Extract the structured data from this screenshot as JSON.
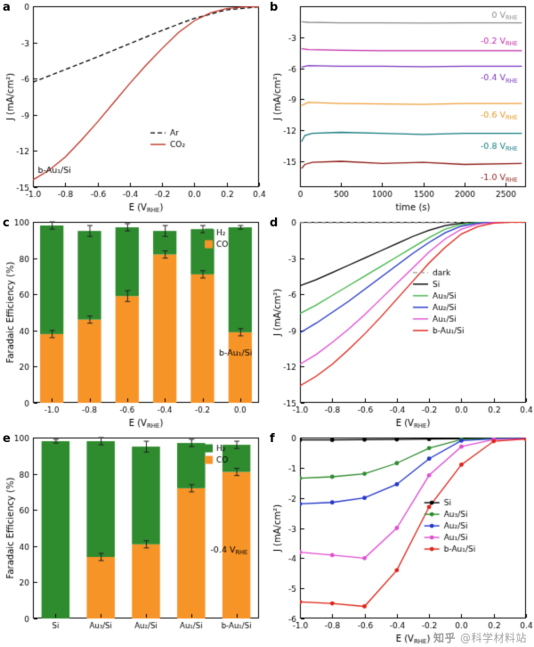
{
  "watermark": {
    "logo": "知乎",
    "handle": "@科学材料站"
  },
  "chart_data": [
    {
      "panel_label": "a",
      "id": "a",
      "type": "line",
      "xlabel": "E (V~RHE~)",
      "ylabel": "J (mA/cm²)",
      "xlim": [
        -1.0,
        0.4
      ],
      "ylim": [
        -15,
        0
      ],
      "xticks": [
        -1.0,
        -0.8,
        -0.6,
        -0.4,
        -0.2,
        0.0,
        0.2,
        0.4
      ],
      "xtick_labels": [
        "-1.0",
        "-0.8",
        "-0.6",
        "-0.4",
        "-0.2",
        "0.0",
        "0.2",
        "0.4"
      ],
      "yticks": [
        0,
        -3,
        -6,
        -9,
        -12,
        -15
      ],
      "legend": {
        "fx": 0.52,
        "fy": 0.7
      },
      "annotations": [
        {
          "text": "b-Au₁/Si",
          "x": -0.97,
          "y": -13.6,
          "color": "#000000",
          "align": "left"
        }
      ],
      "series": [
        {
          "name": "Ar",
          "color": "#000000",
          "dash": [
            5,
            3
          ],
          "x": [
            -1.0,
            -0.8,
            -0.6,
            -0.4,
            -0.2,
            0.0,
            0.2,
            0.4
          ],
          "y": [
            -6.3,
            -5.25,
            -4.2,
            -3.1,
            -2.0,
            -1.0,
            -0.3,
            -0.05
          ]
        },
        {
          "name": "CO₂",
          "color": "#c0392b",
          "x": [
            -1.0,
            -0.9,
            -0.8,
            -0.7,
            -0.6,
            -0.5,
            -0.4,
            -0.3,
            -0.2,
            -0.1,
            0.0,
            0.1,
            0.2,
            0.3,
            0.4
          ],
          "y": [
            -14.4,
            -13.6,
            -12.5,
            -11.1,
            -9.6,
            -8.0,
            -6.4,
            -4.9,
            -3.5,
            -2.2,
            -1.2,
            -0.55,
            -0.2,
            -0.07,
            -0.04
          ]
        }
      ]
    },
    {
      "panel_label": "b",
      "id": "b",
      "type": "line",
      "xlabel": "time (s)",
      "ylabel": "J (mA/cm²)",
      "xlim": [
        0,
        2750
      ],
      "ylim": [
        -17.5,
        0
      ],
      "xticks": [
        0,
        500,
        1000,
        1500,
        2000,
        2500
      ],
      "xtick_labels": [
        "0",
        "500",
        "1000",
        "1500",
        "2000",
        "2500"
      ],
      "yticks": [
        -3,
        -6,
        -9,
        -12,
        -15
      ],
      "annotations": [
        {
          "text": "0 V~RHE~",
          "x": 2650,
          "y": -0.8,
          "color": "#8e8e8e",
          "align": "right"
        },
        {
          "text": "-0.2 V~RHE~",
          "x": 2650,
          "y": -3.3,
          "color": "#c22ba8",
          "align": "right"
        },
        {
          "text": "-0.4 V~RHE~",
          "x": 2650,
          "y": -6.9,
          "color": "#7d35c1",
          "align": "right"
        },
        {
          "text": "-0.6 V~RHE~",
          "x": 2650,
          "y": -10.5,
          "color": "#e8992a",
          "align": "right"
        },
        {
          "text": "-0.8 V~RHE~",
          "x": 2650,
          "y": -13.5,
          "color": "#177d80",
          "align": "right"
        },
        {
          "text": "-1.0 V~RHE~",
          "x": 2650,
          "y": -16.5,
          "color": "#8e1d15",
          "align": "right"
        }
      ],
      "series": [
        {
          "name": "0 V",
          "color": "#8e8e8e",
          "x": [
            20,
            100,
            500,
            1000,
            1500,
            2000,
            2700
          ],
          "y": [
            -1.5,
            -1.55,
            -1.6,
            -1.6,
            -1.62,
            -1.6,
            -1.6
          ]
        },
        {
          "name": "-0.2 V",
          "color": "#c22ba8",
          "x": [
            20,
            100,
            500,
            1000,
            1500,
            2000,
            2700
          ],
          "y": [
            -4.1,
            -4.2,
            -4.25,
            -4.3,
            -4.3,
            -4.3,
            -4.3
          ]
        },
        {
          "name": "-0.4 V",
          "color": "#7d35c1",
          "x": [
            20,
            100,
            500,
            1000,
            1500,
            2000,
            2700
          ],
          "y": [
            -5.9,
            -5.75,
            -5.8,
            -5.8,
            -5.85,
            -5.8,
            -5.8
          ]
        },
        {
          "name": "-0.6 V",
          "color": "#f0a13c",
          "x": [
            20,
            100,
            500,
            1000,
            1500,
            2000,
            2700
          ],
          "y": [
            -9.6,
            -9.3,
            -9.4,
            -9.45,
            -9.5,
            -9.4,
            -9.4
          ]
        },
        {
          "name": "-0.8 V",
          "color": "#177d80",
          "x": [
            20,
            60,
            150,
            500,
            1000,
            1500,
            2000,
            2700
          ],
          "y": [
            -13.1,
            -12.5,
            -12.3,
            -12.2,
            -12.3,
            -12.4,
            -12.3,
            -12.3
          ]
        },
        {
          "name": "-1.0 V",
          "color": "#8e1d15",
          "x": [
            20,
            60,
            150,
            500,
            1000,
            1500,
            2000,
            2700
          ],
          "y": [
            -15.7,
            -15.3,
            -15.1,
            -15.0,
            -15.2,
            -15.1,
            -15.3,
            -15.2
          ]
        }
      ]
    },
    {
      "panel_label": "c",
      "id": "c",
      "type": "stacked_bar",
      "xlabel": "E (V~RHE~)",
      "ylabel": "Faradaic Efficiency (%)",
      "ylim": [
        0,
        100
      ],
      "yticks": [
        0,
        20,
        40,
        60,
        80,
        100
      ],
      "categories": [
        "-1.0",
        "-0.8",
        "-0.6",
        "-0.4",
        "-0.2",
        "0.0"
      ],
      "series": [
        {
          "name": "CO",
          "color": "#f79428",
          "values": [
            38,
            46,
            59,
            82,
            71,
            39
          ],
          "errors": [
            2,
            2,
            3,
            2,
            2,
            2
          ]
        },
        {
          "name": "H₂",
          "color": "#2e8b2e",
          "values": [
            60,
            49,
            38,
            13,
            25,
            58
          ],
          "errors": [
            2,
            3,
            2,
            3,
            2,
            1
          ]
        }
      ],
      "legend": {
        "order": [
          "H₂",
          "CO"
        ],
        "fx": 0.76,
        "fy": 0.02
      },
      "annotations": [
        {
          "text": "b-Au₁/Si",
          "fx": 0.97,
          "fy": 0.72,
          "align": "right",
          "color": "#000000"
        }
      ]
    },
    {
      "panel_label": "d",
      "id": "d",
      "type": "line",
      "xlabel": "E (V~RHE~)",
      "ylabel": "J (mA/cm²)",
      "xlim": [
        -1.0,
        0.4
      ],
      "ylim": [
        -15,
        0
      ],
      "xticks": [
        -1.0,
        -0.8,
        -0.6,
        -0.4,
        -0.2,
        0.0,
        0.2,
        0.4
      ],
      "xtick_labels": [
        "-1.0",
        "-0.8",
        "-0.6",
        "-0.4",
        "-0.2",
        "0.0",
        "0.2",
        "0.4"
      ],
      "yticks": [
        0,
        -3,
        -6,
        -9,
        -12,
        -15
      ],
      "legend": {
        "fx": 0.5,
        "fy": 0.28
      },
      "series": [
        {
          "name": "dark",
          "color": "#999999",
          "dash": [
            5,
            3
          ],
          "x": [
            -1.0,
            0.4
          ],
          "y": [
            -0.07,
            -0.05
          ]
        },
        {
          "name": "Si",
          "color": "#000000",
          "x": [
            -1.0,
            -0.9,
            -0.8,
            -0.7,
            -0.6,
            -0.5,
            -0.4,
            -0.3,
            -0.2,
            -0.1,
            0.0,
            0.1,
            0.2,
            0.3,
            0.4
          ],
          "y": [
            -5.3,
            -4.8,
            -4.2,
            -3.6,
            -3.0,
            -2.4,
            -1.8,
            -1.2,
            -0.7,
            -0.3,
            -0.1,
            -0.03,
            -0.02,
            -0.02,
            -0.02
          ]
        },
        {
          "name": "Au₃/Si",
          "color": "#43b649",
          "x": [
            -1.0,
            -0.9,
            -0.8,
            -0.7,
            -0.6,
            -0.5,
            -0.4,
            -0.3,
            -0.2,
            -0.1,
            0.0,
            0.1,
            0.2,
            0.3,
            0.4
          ],
          "y": [
            -7.6,
            -6.9,
            -6.1,
            -5.3,
            -4.5,
            -3.7,
            -2.9,
            -2.1,
            -1.3,
            -0.6,
            -0.2,
            -0.05,
            -0.02,
            -0.02,
            -0.02
          ]
        },
        {
          "name": "Au₂/Si",
          "color": "#2437c9",
          "x": [
            -1.0,
            -0.9,
            -0.8,
            -0.7,
            -0.6,
            -0.5,
            -0.4,
            -0.3,
            -0.2,
            -0.1,
            0.0,
            0.1,
            0.2,
            0.3,
            0.4
          ],
          "y": [
            -9.2,
            -8.4,
            -7.5,
            -6.6,
            -5.6,
            -4.6,
            -3.6,
            -2.6,
            -1.7,
            -0.9,
            -0.35,
            -0.1,
            -0.03,
            -0.02,
            -0.02
          ]
        },
        {
          "name": "Au₁/Si",
          "color": "#e14fd4",
          "x": [
            -1.0,
            -0.9,
            -0.8,
            -0.7,
            -0.6,
            -0.5,
            -0.4,
            -0.3,
            -0.2,
            -0.1,
            0.0,
            0.1,
            0.2,
            0.3,
            0.4
          ],
          "y": [
            -11.8,
            -11.0,
            -10.0,
            -8.9,
            -7.7,
            -6.4,
            -5.1,
            -3.8,
            -2.5,
            -1.4,
            -0.6,
            -0.2,
            -0.05,
            -0.02,
            -0.02
          ]
        },
        {
          "name": "b-Au₁/Si",
          "color": "#e02418",
          "x": [
            -1.0,
            -0.9,
            -0.8,
            -0.7,
            -0.6,
            -0.5,
            -0.4,
            -0.3,
            -0.2,
            -0.1,
            0.0,
            0.1,
            0.2,
            0.3,
            0.4
          ],
          "y": [
            -13.6,
            -12.8,
            -11.8,
            -10.6,
            -9.3,
            -7.9,
            -6.4,
            -4.9,
            -3.4,
            -2.1,
            -1.0,
            -0.4,
            -0.1,
            -0.03,
            -0.02
          ]
        }
      ]
    },
    {
      "panel_label": "e",
      "id": "e",
      "type": "stacked_bar",
      "xlabel": "",
      "ylabel": "Faradaic Efficiency (%)",
      "ylim": [
        0,
        100
      ],
      "yticks": [
        0,
        20,
        40,
        60,
        80,
        100
      ],
      "categories": [
        "Si",
        "Au₃/Si",
        "Au₂/Si",
        "Au₁/Si",
        "b-Au₁/Si"
      ],
      "series": [
        {
          "name": "CO",
          "color": "#f79428",
          "values": [
            0,
            34,
            41,
            72,
            81
          ],
          "errors": [
            0,
            2,
            2,
            2,
            2
          ]
        },
        {
          "name": "H₂",
          "color": "#2e8b2e",
          "values": [
            98,
            64,
            54,
            25,
            15
          ],
          "errors": [
            1,
            2,
            3,
            2,
            2
          ]
        }
      ],
      "legend": {
        "order": [
          "H₂",
          "CO"
        ],
        "fx": 0.76,
        "fy": 0.02
      },
      "annotations": [
        {
          "text": "-0.4 V~RHE~",
          "fx": 0.95,
          "fy": 0.62,
          "align": "right",
          "color": "#000000"
        }
      ]
    },
    {
      "panel_label": "f",
      "id": "f",
      "type": "line",
      "xlabel": "E (V~RHE~)",
      "ylabel": "J (mA/cm²)",
      "xlim": [
        -1.0,
        0.4
      ],
      "ylim": [
        -6,
        0
      ],
      "xticks": [
        -1.0,
        -0.8,
        -0.6,
        -0.4,
        -0.2,
        0.0,
        0.2,
        0.4
      ],
      "xtick_labels": [
        "-1.0",
        "-0.8",
        "-0.6",
        "-0.4",
        "-0.2",
        "0.0",
        "0.2",
        "0.4"
      ],
      "yticks": [
        0,
        -1,
        -2,
        -3,
        -4,
        -5,
        -6
      ],
      "legend": {
        "fx": 0.55,
        "fy": 0.36
      },
      "series": [
        {
          "name": "Si",
          "color": "#000000",
          "marker": "circle",
          "x": [
            -1.0,
            -0.8,
            -0.6,
            -0.4,
            -0.2,
            0.0,
            0.2,
            0.4
          ],
          "y": [
            -0.08,
            -0.08,
            -0.07,
            -0.06,
            -0.05,
            -0.04,
            -0.03,
            -0.03
          ]
        },
        {
          "name": "Au₃/Si",
          "color": "#2e8b2e",
          "marker": "circle",
          "x": [
            -1.0,
            -0.8,
            -0.6,
            -0.4,
            -0.2,
            0.0,
            0.2,
            0.4
          ],
          "y": [
            -1.35,
            -1.3,
            -1.2,
            -0.85,
            -0.35,
            -0.06,
            -0.03,
            -0.03
          ]
        },
        {
          "name": "Au₂/Si",
          "color": "#2437c9",
          "marker": "circle",
          "x": [
            -1.0,
            -0.8,
            -0.6,
            -0.4,
            -0.2,
            0.0,
            0.2,
            0.4
          ],
          "y": [
            -2.2,
            -2.15,
            -2.0,
            -1.55,
            -0.7,
            -0.1,
            -0.04,
            -0.03
          ]
        },
        {
          "name": "Au₁/Si",
          "color": "#e14fd4",
          "marker": "circle",
          "x": [
            -1.0,
            -0.8,
            -0.6,
            -0.4,
            -0.2,
            0.0,
            0.2,
            0.4
          ],
          "y": [
            -3.8,
            -3.9,
            -4.0,
            -3.0,
            -1.25,
            -0.3,
            -0.06,
            -0.04
          ]
        },
        {
          "name": "b-Au₁/Si",
          "color": "#e02418",
          "marker": "circle",
          "x": [
            -1.0,
            -0.8,
            -0.6,
            -0.4,
            -0.2,
            0.0,
            0.2,
            0.4
          ],
          "y": [
            -5.45,
            -5.5,
            -5.6,
            -4.4,
            -2.3,
            -0.9,
            -0.12,
            -0.05
          ]
        }
      ]
    }
  ]
}
